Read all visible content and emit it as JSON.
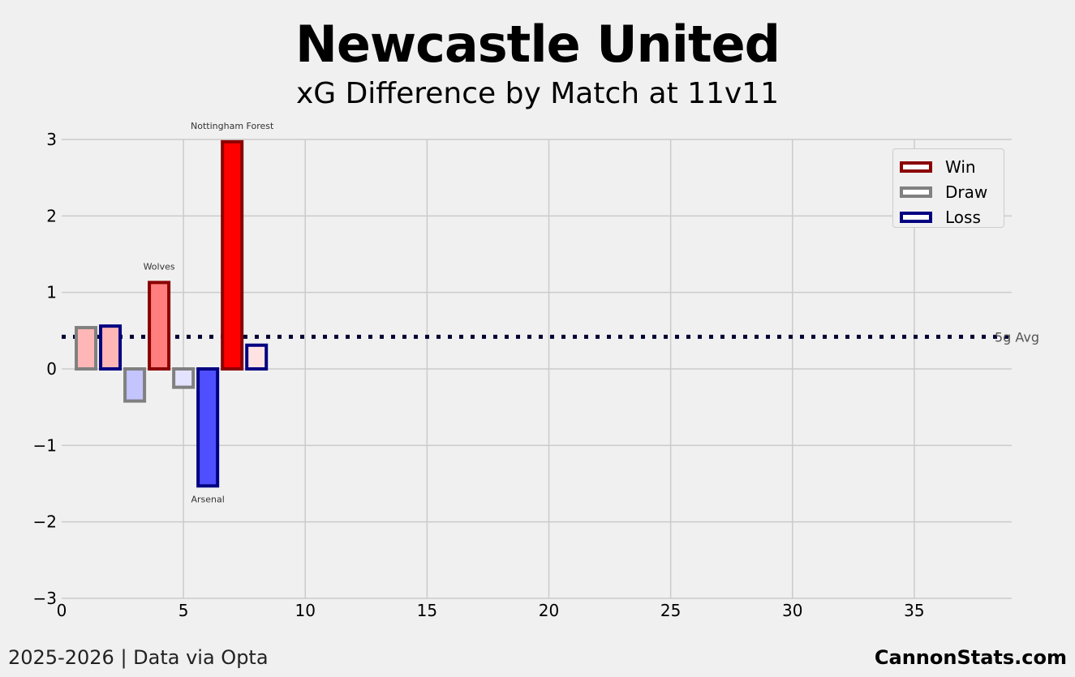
{
  "title": "Newcastle United",
  "subtitle": "xG Difference by Match at 11v11",
  "footer": {
    "left": "2025-2026 | Data via Opta",
    "right": "CannonStats.com"
  },
  "chart_data": {
    "type": "bar",
    "title": "Newcastle United",
    "subtitle": "xG Difference by Match at 11v11",
    "xlim": [
      0,
      39
    ],
    "ylim": [
      -3,
      3
    ],
    "x_ticks": [
      0,
      5,
      10,
      15,
      20,
      25,
      30,
      35
    ],
    "y_ticks": [
      -3,
      -2,
      -1,
      0,
      1,
      2,
      3
    ],
    "y_tick_labels": [
      "−3",
      "−2",
      "−1",
      "0",
      "1",
      "2",
      "3"
    ],
    "grid": true,
    "legend_position": "top-right",
    "legend": [
      {
        "label": "Win",
        "edge": "#8b0000"
      },
      {
        "label": "Draw",
        "edge": "#808080"
      },
      {
        "label": "Loss",
        "edge": "#000080"
      }
    ],
    "average": {
      "value": 0.42,
      "label": "5g Avg"
    },
    "matches": [
      {
        "match": 1,
        "xg_diff": 0.54,
        "result": "Draw",
        "fill": "#ffb6b6"
      },
      {
        "match": 2,
        "xg_diff": 0.56,
        "result": "Loss",
        "fill": "#ffb6b6"
      },
      {
        "match": 3,
        "xg_diff": -0.42,
        "result": "Draw",
        "fill": "#c4c4ff"
      },
      {
        "match": 4,
        "xg_diff": 1.13,
        "result": "Win",
        "fill": "#ff7f7f",
        "label": "Wolves"
      },
      {
        "match": 5,
        "xg_diff": -0.24,
        "result": "Draw",
        "fill": "#e3e3ff"
      },
      {
        "match": 6,
        "xg_diff": -1.53,
        "result": "Loss",
        "fill": "#4f4fff",
        "label": "Arsenal"
      },
      {
        "match": 7,
        "xg_diff": 2.97,
        "result": "Win",
        "fill": "#ff0000",
        "label": "Nottingham Forest"
      },
      {
        "match": 8,
        "xg_diff": 0.31,
        "result": "Loss",
        "fill": "#ffe3e3"
      }
    ]
  }
}
